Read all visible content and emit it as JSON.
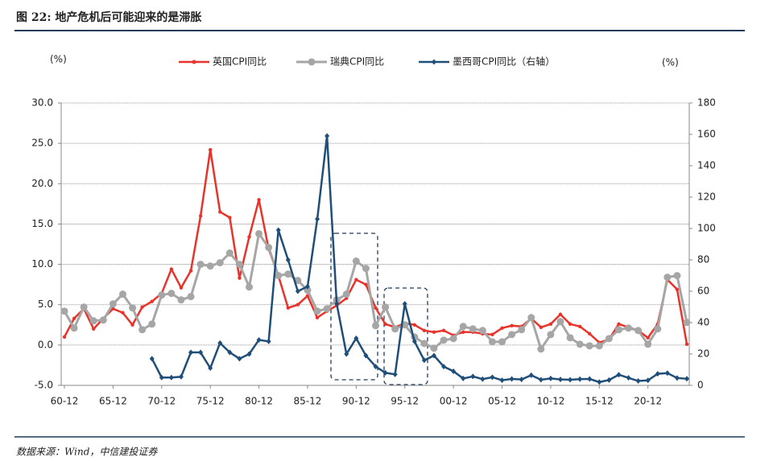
{
  "chart_data": {
    "type": "line",
    "title": "图 22: 地产危机后可能迎来的是滞胀",
    "y_label": "(%)",
    "y2_label": "(%)",
    "source": "数据来源：Wind，中信建投证券",
    "categories": [
      "60-12",
      null,
      null,
      null,
      null,
      "65-12",
      null,
      null,
      null,
      null,
      "70-12",
      null,
      null,
      null,
      null,
      "75-12",
      null,
      null,
      null,
      null,
      "80-12",
      null,
      null,
      null,
      null,
      "85-12",
      null,
      null,
      null,
      null,
      "90-12",
      null,
      null,
      null,
      null,
      "95-12",
      null,
      null,
      null,
      null,
      "00-12",
      null,
      null,
      null,
      null,
      "05-12",
      null,
      null,
      null,
      null,
      "10-12",
      null,
      null,
      null,
      null,
      "15-12",
      null,
      null,
      null,
      null,
      "20-12",
      null,
      null,
      null,
      null
    ],
    "series": [
      {
        "name": "英国CPI同比",
        "color": "#e8332a",
        "values": [
          1.0,
          3.3,
          4.5,
          2.0,
          3.3,
          4.5,
          4.0,
          2.5,
          4.7,
          5.4,
          6.4,
          9.4,
          7.1,
          9.2,
          16.0,
          24.2,
          16.5,
          15.8,
          8.3,
          13.4,
          18.0,
          11.9,
          8.6,
          4.6,
          5.0,
          6.1,
          3.4,
          4.2,
          4.9,
          5.8,
          8.1,
          7.5,
          4.6,
          2.6,
          2.2,
          2.7,
          2.5,
          1.8,
          1.6,
          1.8,
          1.2,
          1.6,
          1.6,
          1.4,
          1.3,
          2.1,
          2.4,
          2.3,
          3.3,
          2.2,
          2.6,
          3.8,
          2.6,
          2.3,
          1.4,
          0.3,
          0.7,
          2.6,
          2.2,
          1.8,
          0.9,
          2.6,
          8.1,
          6.9,
          0.1
        ]
      },
      {
        "name": "瑞典CPI同比",
        "color": "#a6a6a6",
        "values": [
          4.2,
          2.1,
          4.7,
          3.0,
          3.1,
          5.1,
          6.3,
          4.6,
          1.9,
          2.6,
          6.2,
          6.4,
          5.6,
          6.0,
          10.0,
          9.8,
          10.2,
          11.4,
          10.0,
          7.2,
          13.8,
          12.1,
          8.6,
          8.8,
          8.0,
          6.8,
          4.2,
          4.5,
          5.6,
          6.3,
          10.4,
          9.5,
          2.4,
          4.7,
          2.0,
          2.5,
          1.0,
          0.2,
          -0.4,
          0.6,
          0.8,
          2.3,
          2.0,
          1.8,
          0.4,
          0.4,
          1.3,
          1.9,
          3.4,
          -0.5,
          1.3,
          2.9,
          0.9,
          0.1,
          -0.1,
          -0.1,
          0.8,
          1.9,
          2.1,
          1.8,
          0.1,
          2.0,
          8.4,
          8.6,
          2.8
        ]
      },
      {
        "name": "墨西哥CPI同比（右轴）",
        "color": "#1f4e79",
        "axis": "y2",
        "values": [
          null,
          null,
          null,
          null,
          null,
          null,
          null,
          null,
          null,
          17,
          5,
          5,
          5.5,
          21,
          21,
          11,
          27,
          21,
          17,
          20,
          29,
          28,
          99,
          80,
          60,
          63,
          106,
          159,
          52,
          20,
          30,
          19,
          12,
          8,
          7,
          52,
          28,
          16,
          19,
          12,
          9,
          4.4,
          5.7,
          4,
          5.2,
          3.3,
          4.1,
          3.8,
          6.5,
          3.6,
          4.4,
          3.8,
          3.6,
          4,
          4.1,
          2.1,
          3.4,
          6.8,
          4.8,
          2.8,
          3.2,
          7.4,
          7.8,
          4.7,
          4.2
        ]
      }
    ],
    "ylim": [
      -5,
      30
    ],
    "yticks": [
      {
        "value": -5,
        "label": "-5.0"
      },
      {
        "value": 0,
        "label": "0.0"
      },
      {
        "value": 5,
        "label": "5.0"
      },
      {
        "value": 10,
        "label": "10.0"
      },
      {
        "value": 15,
        "label": "15.0"
      },
      {
        "value": 20,
        "label": "20.0"
      },
      {
        "value": 25,
        "label": "25.0"
      },
      {
        "value": 30,
        "label": "30.0"
      }
    ],
    "y2lim": [
      0,
      180
    ],
    "y2ticks": [
      0,
      20,
      40,
      60,
      80,
      100,
      120,
      140,
      160,
      180
    ],
    "grid": true
  }
}
